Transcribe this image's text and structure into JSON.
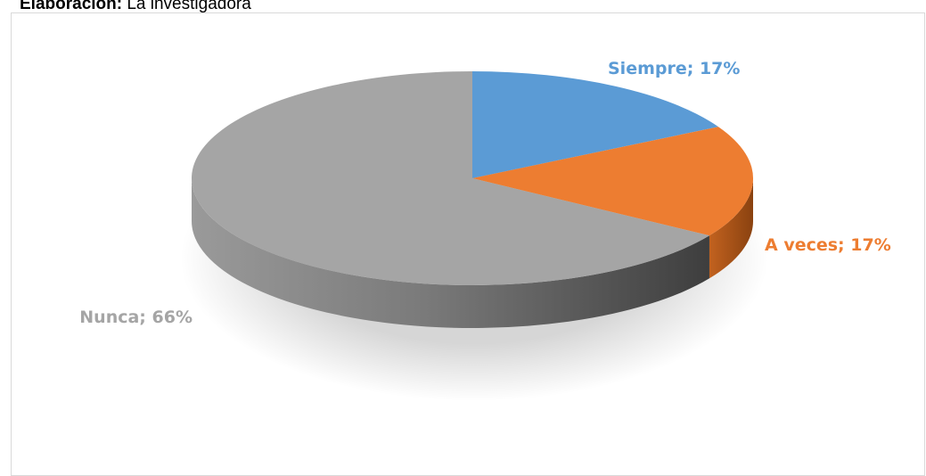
{
  "header": {
    "caption_bold": "Elaboración:",
    "caption_text": "La investigadora"
  },
  "chart_data": {
    "type": "pie",
    "style": "3d",
    "slices": [
      {
        "label": "Siempre",
        "value": 17,
        "color": "#5B9BD5",
        "data_label": "Siempre; 17%"
      },
      {
        "label": "A veces",
        "value": 17,
        "color": "#ED7D31",
        "data_label": "A veces; 17%"
      },
      {
        "label": "Nunca",
        "value": 66,
        "color": "#A5A5A5",
        "data_label": "Nunca; 66%"
      }
    ],
    "legend": "none"
  }
}
